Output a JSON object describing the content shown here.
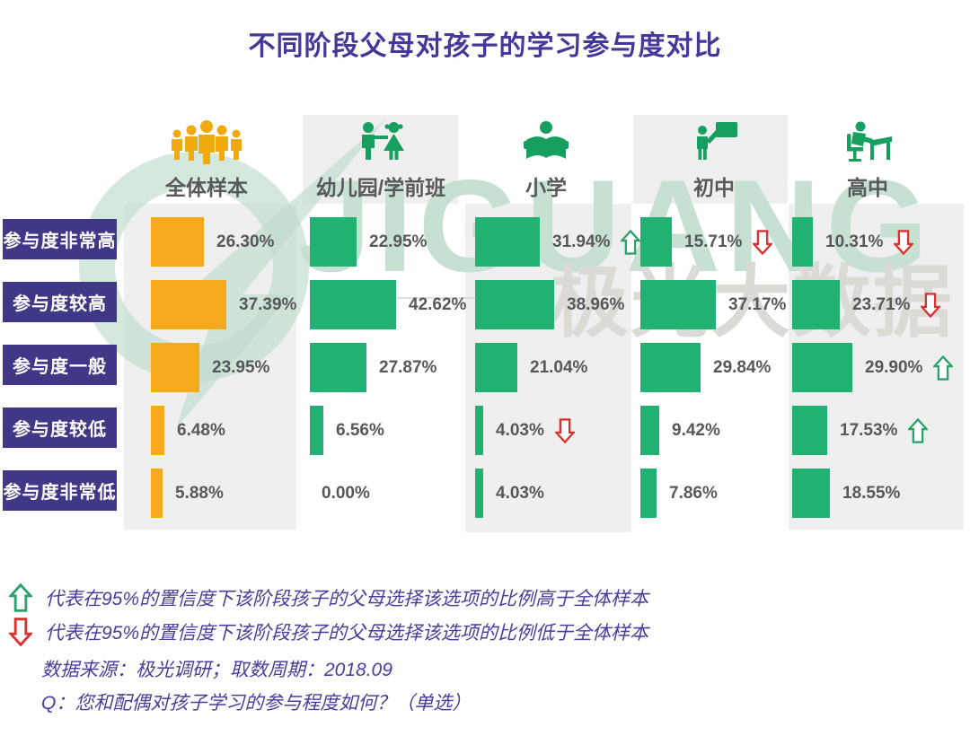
{
  "title": "不同阶段父母对孩子的学习参与度对比",
  "watermark": {
    "brand": "JIGUANG",
    "brand_cn": "极光大数据"
  },
  "chart_data": {
    "type": "bar",
    "orientation": "horizontal",
    "unit": "%",
    "value_format": "2-decimal percent",
    "categories": [
      "参与度非常高",
      "参与度较高",
      "参与度一般",
      "参与度较低",
      "参与度非常低"
    ],
    "series": [
      {
        "name": "全体样本",
        "icon": "sample-group-icon",
        "color": "#F5A91C",
        "values": [
          26.3,
          37.39,
          23.95,
          6.48,
          5.88
        ],
        "flags": [
          null,
          null,
          null,
          null,
          null
        ]
      },
      {
        "name": "幼儿园/学前班",
        "icon": "kindergarten-kids-icon",
        "color": "#21B273",
        "values": [
          22.95,
          42.62,
          27.87,
          6.56,
          0.0
        ],
        "flags": [
          null,
          null,
          null,
          null,
          null
        ]
      },
      {
        "name": "小学",
        "icon": "primary-reading-icon",
        "color": "#21B273",
        "values": [
          31.94,
          38.96,
          21.04,
          4.03,
          4.03
        ],
        "flags": [
          "up",
          null,
          null,
          "down",
          null
        ]
      },
      {
        "name": "初中",
        "icon": "junior-teacher-board-icon",
        "color": "#21B273",
        "values": [
          15.71,
          37.17,
          29.84,
          9.42,
          7.86
        ],
        "flags": [
          "down",
          null,
          null,
          null,
          null
        ]
      },
      {
        "name": "高中",
        "icon": "senior-desk-icon",
        "color": "#21B273",
        "values": [
          10.31,
          23.71,
          29.9,
          17.53,
          18.55
        ],
        "flags": [
          "down",
          "down",
          "up",
          "up",
          null
        ]
      }
    ],
    "flag_meaning": {
      "up": "95%置信度下高于全体样本",
      "down": "95%置信度下低于全体样本"
    },
    "xlim": [
      0,
      45
    ],
    "grid": false,
    "legend_position": "bottom"
  },
  "legend": {
    "up_text": "代表在95%的置信度下该阶段孩子的父母选择该选项的比例高于全体样本",
    "down_text": "代表在95%的置信度下该阶段孩子的父母选择该选项的比例低于全体样本",
    "source": "数据来源：极光调研；取数周期：2018.09",
    "question": "Q：您和配偶对孩子学习的参与程度如何？（单选）"
  },
  "colors": {
    "title_purple": "#44389A",
    "row_label_purple": "#413787",
    "bar_yellow": "#F5A91C",
    "bar_green": "#21B273",
    "icon_green": "#169F5F",
    "value_text_gray": "#57585A",
    "panel_gray": "#F0EFF0",
    "arrow_up_green": "#29A36A",
    "arrow_down_red": "#D9322E",
    "watermark_green": "#C6E0D2",
    "watermark_gray": "#DBDAD4"
  }
}
